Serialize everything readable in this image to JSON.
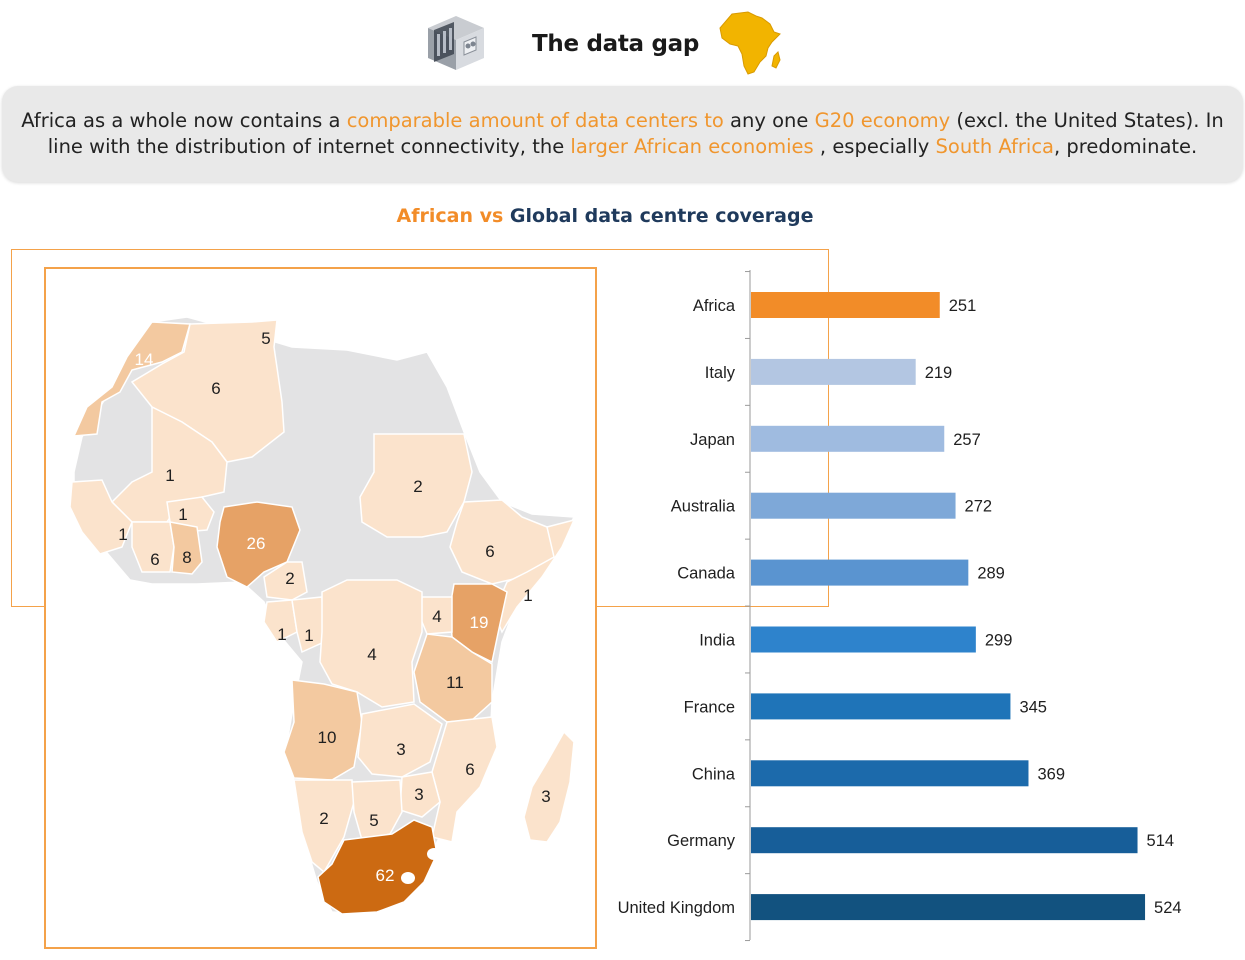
{
  "header": {
    "title": "The data gap"
  },
  "summary": {
    "part1": "Africa as a whole now contains a ",
    "hl1": "comparable amount of data centers to",
    "part2": " any one ",
    "hl2": "G20 economy",
    "part3": " (excl. the United States). In line with the distribution of internet connectivity, the ",
    "hl3": "larger African economies",
    "part4": " , especially ",
    "hl4": "South Africa",
    "part5": ", predominate."
  },
  "chart_title": {
    "orange": "African vs",
    "rest": " Global data centre coverage"
  },
  "colors": {
    "accent_orange": "#f28c28",
    "title_navy": "#1f3a5c",
    "frame_orange": "#f4a24a",
    "map_grey": "#e3e3e4",
    "map_light": "#fbe3cc",
    "map_mid": "#f3c9a0",
    "map_strong": "#e6a266",
    "map_dark": "#cc6a12"
  },
  "map_values": [
    "14",
    "5",
    "6",
    "1",
    "1",
    "1",
    "6",
    "8",
    "26",
    "2",
    "2",
    "6",
    "1",
    "4",
    "19",
    "1",
    "1",
    "4",
    "11",
    "10",
    "3",
    "6",
    "3",
    "2",
    "5",
    "3",
    "62"
  ],
  "chart_data": {
    "type": "bar",
    "orientation": "horizontal",
    "title": "",
    "categories": [
      "Africa",
      "Italy",
      "Japan",
      "Australia",
      "Canada",
      "India",
      "France",
      "China",
      "Germany",
      "United Kingdom"
    ],
    "values": [
      251,
      219,
      257,
      272,
      289,
      299,
      345,
      369,
      514,
      524
    ],
    "colors": [
      "#f28c28",
      "#b3c6e2",
      "#9fbbe0",
      "#7ea8d8",
      "#5a94d0",
      "#2e83cc",
      "#1f74b8",
      "#1c6aab",
      "#175e99",
      "#12527f"
    ],
    "xlim": [
      0,
      600
    ],
    "grid": false,
    "legend": "none"
  }
}
